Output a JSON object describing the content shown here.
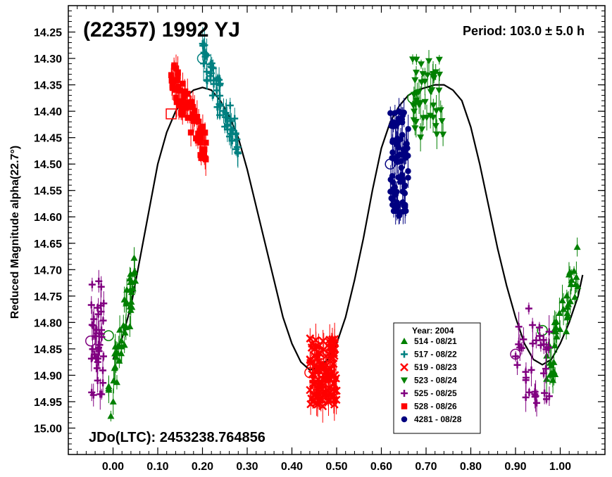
{
  "chart_data": {
    "type": "scatter",
    "title": "(22357) 1992 YJ",
    "period_label": "Period: 103.0 ± 5.0 h",
    "jdo_label": "JDo(LTC): 2453238.764856",
    "xlabel": "",
    "ylabel": "Reduced Magnitude alpha(22.7°)",
    "xlim": [
      -0.1,
      1.1
    ],
    "ylim": [
      15.05,
      14.2
    ],
    "y_inverted": true,
    "grid": false,
    "x_ticks": [
      "0.00",
      "0.10",
      "0.20",
      "0.30",
      "0.40",
      "0.50",
      "0.60",
      "0.70",
      "0.80",
      "0.90",
      "1.00"
    ],
    "y_ticks": [
      "14.25",
      "14.30",
      "14.35",
      "14.40",
      "14.45",
      "14.50",
      "14.55",
      "14.60",
      "14.65",
      "14.70",
      "14.75",
      "14.80",
      "14.85",
      "14.90",
      "14.95",
      "15.00"
    ],
    "legend": {
      "title": "Year: 2004",
      "position": "bottom-right",
      "entries": [
        {
          "label": "514 - 08/21",
          "color": "#008000",
          "marker": "triangle-up"
        },
        {
          "label": "517 - 08/22",
          "color": "#008080",
          "marker": "plus"
        },
        {
          "label": "519 - 08/23",
          "color": "#ff0000",
          "marker": "x"
        },
        {
          "label": "523 - 08/24",
          "color": "#008000",
          "marker": "triangle-down"
        },
        {
          "label": "525 - 08/25",
          "color": "#800080",
          "marker": "plus"
        },
        {
          "label": "528 - 08/26",
          "color": "#ff0000",
          "marker": "square"
        },
        {
          "label": "4281 - 08/28",
          "color": "#000080",
          "marker": "circle"
        }
      ]
    },
    "fit_curve": {
      "color": "#000000",
      "x": [
        0.0,
        0.02,
        0.04,
        0.06,
        0.08,
        0.1,
        0.12,
        0.14,
        0.16,
        0.18,
        0.2,
        0.22,
        0.24,
        0.26,
        0.28,
        0.3,
        0.32,
        0.34,
        0.36,
        0.38,
        0.4,
        0.42,
        0.44,
        0.46,
        0.48,
        0.5,
        0.52,
        0.54,
        0.56,
        0.58,
        0.6,
        0.62,
        0.64,
        0.66,
        0.68,
        0.7,
        0.72,
        0.74,
        0.76,
        0.78,
        0.8,
        0.82,
        0.84,
        0.86,
        0.88,
        0.9,
        0.92,
        0.94,
        0.96,
        0.98,
        1.0,
        1.02,
        1.04,
        1.05
      ],
      "y": [
        14.87,
        14.83,
        14.77,
        14.68,
        14.59,
        14.5,
        14.44,
        14.4,
        14.375,
        14.36,
        14.355,
        14.36,
        14.38,
        14.41,
        14.45,
        14.51,
        14.58,
        14.65,
        14.72,
        14.79,
        14.84,
        14.875,
        14.89,
        14.885,
        14.87,
        14.84,
        14.79,
        14.72,
        14.64,
        14.55,
        14.47,
        14.42,
        14.39,
        14.37,
        14.36,
        14.355,
        14.35,
        14.35,
        14.36,
        14.38,
        14.43,
        14.5,
        14.58,
        14.66,
        14.73,
        14.79,
        14.84,
        14.87,
        14.88,
        14.87,
        14.84,
        14.8,
        14.75,
        14.71
      ]
    },
    "series": [
      {
        "name": "514 - 08/21",
        "color": "#008000",
        "marker": "triangle-up",
        "x_range": [
          -0.01,
          0.05
        ],
        "y_range": [
          14.95,
          14.7
        ],
        "n": 45,
        "trend": "rising",
        "x2_range": [
          0.96,
          1.04
        ],
        "y2_range": [
          14.93,
          14.7
        ]
      },
      {
        "name": "517 - 08/22",
        "color": "#008080",
        "marker": "plus",
        "x_range": [
          0.2,
          0.28
        ],
        "y_range": [
          14.3,
          14.46
        ],
        "n": 60,
        "trend": "falling"
      },
      {
        "name": "519 - 08/23",
        "color": "#ff0000",
        "marker": "x",
        "x_range": [
          0.44,
          0.5
        ],
        "y_range": [
          14.83,
          14.96
        ],
        "n": 110,
        "trend": "cluster"
      },
      {
        "name": "523 - 08/24",
        "color": "#008000",
        "marker": "triangle-down",
        "x_range": [
          0.67,
          0.74
        ],
        "y_range": [
          14.3,
          14.45
        ],
        "n": 45,
        "trend": "cluster"
      },
      {
        "name": "525 - 08/25",
        "color": "#800080",
        "marker": "plus",
        "x_range": [
          -0.05,
          -0.02
        ],
        "y_range": [
          14.72,
          14.95
        ],
        "n": 40,
        "trend": "cluster",
        "x2_range": [
          0.9,
          0.98
        ],
        "y2_range": [
          14.76,
          14.96
        ]
      },
      {
        "name": "528 - 08/26",
        "color": "#ff0000",
        "marker": "square",
        "x_range": [
          0.13,
          0.21
        ],
        "y_range": [
          14.33,
          14.48
        ],
        "n": 70,
        "trend": "rising"
      },
      {
        "name": "4281 - 08/28",
        "color": "#000080",
        "marker": "circle",
        "x_range": [
          0.62,
          0.66
        ],
        "y_range": [
          14.4,
          14.6
        ],
        "n": 90,
        "trend": "cluster"
      }
    ]
  }
}
